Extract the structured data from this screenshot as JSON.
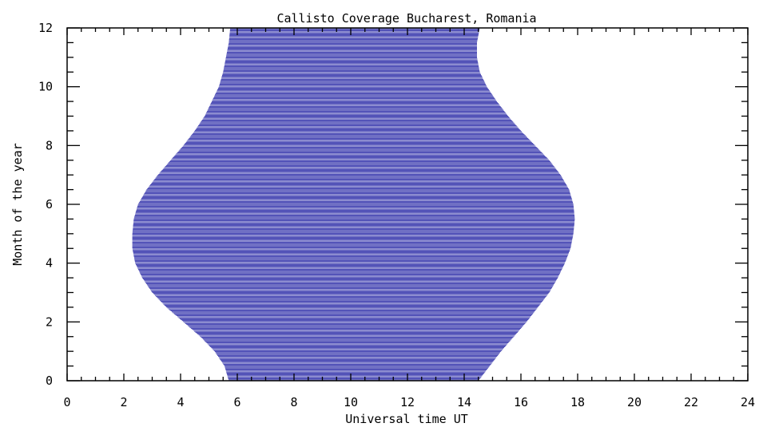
{
  "chart_data": {
    "type": "area",
    "title": "Callisto Coverage Bucharest, Romania",
    "xlabel": "Universal time UT",
    "ylabel": "Month of the year",
    "xlim": [
      0,
      24
    ],
    "ylim": [
      0,
      12
    ],
    "xticks": [
      "0",
      "2",
      "4",
      "6",
      "8",
      "10",
      "12",
      "14",
      "16",
      "18",
      "20",
      "22",
      "24"
    ],
    "yticks": [
      "0",
      "2",
      "4",
      "6",
      "8",
      "10",
      "12"
    ],
    "line_color": "#1a1aa0",
    "grid": false,
    "month": [
      0,
      0.5,
      1,
      1.5,
      2,
      2.5,
      3,
      3.5,
      4,
      4.5,
      5,
      5.5,
      6,
      6.5,
      7,
      7.5,
      8,
      8.5,
      9,
      9.5,
      10,
      10.5,
      11,
      11.5,
      12
    ],
    "sunrise_ut": [
      5.7,
      5.55,
      5.2,
      4.7,
      4.1,
      3.5,
      3.0,
      2.65,
      2.4,
      2.3,
      2.3,
      2.35,
      2.5,
      2.8,
      3.2,
      3.65,
      4.1,
      4.5,
      4.85,
      5.1,
      5.35,
      5.5,
      5.6,
      5.7,
      5.75
    ],
    "sunset_ut": [
      14.5,
      14.9,
      15.3,
      15.75,
      16.2,
      16.6,
      17.0,
      17.3,
      17.55,
      17.75,
      17.85,
      17.9,
      17.85,
      17.7,
      17.4,
      17.0,
      16.5,
      16.0,
      15.55,
      15.15,
      14.8,
      14.55,
      14.45,
      14.45,
      14.55
    ]
  }
}
